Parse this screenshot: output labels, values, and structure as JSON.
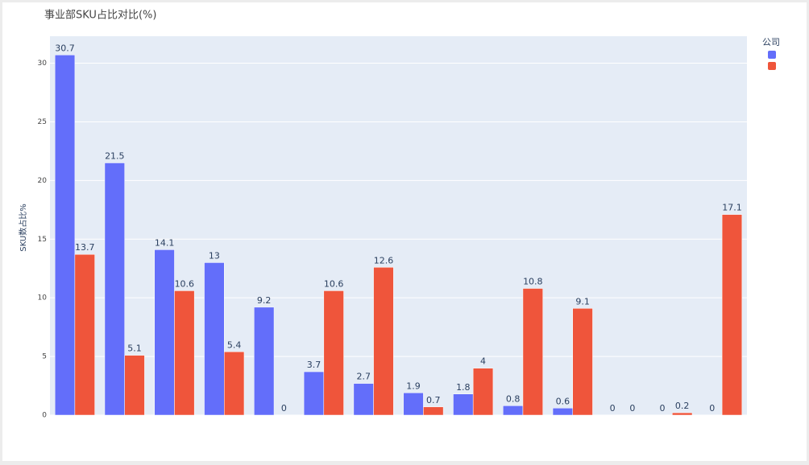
{
  "chart_data": {
    "type": "bar",
    "title": "事业部SKU占比对比(%)",
    "y_label": "SKU数占比%",
    "legend_title": "公司",
    "categories": [
      null,
      null,
      null,
      null,
      null,
      null,
      null,
      null,
      null,
      null,
      null,
      null,
      null,
      null
    ],
    "series": [
      {
        "name": null,
        "color": "#636efa",
        "values": [
          30.7,
          21.5,
          14.1,
          13,
          9.2,
          3.7,
          2.7,
          1.9,
          1.8,
          0.8,
          0.6,
          0,
          0,
          0
        ]
      },
      {
        "name": null,
        "color": "#ef553b",
        "values": [
          13.7,
          5.1,
          10.6,
          5.4,
          0,
          10.6,
          12.6,
          0.7,
          4,
          10.8,
          9.1,
          0,
          0.2,
          17.1
        ]
      }
    ],
    "ylim": [
      0,
      32.3
    ],
    "yticks": [
      0,
      5,
      10,
      15,
      20,
      25,
      30
    ],
    "grid": true,
    "plot_bgcolor": "#e5ecf6",
    "legend": "right"
  }
}
